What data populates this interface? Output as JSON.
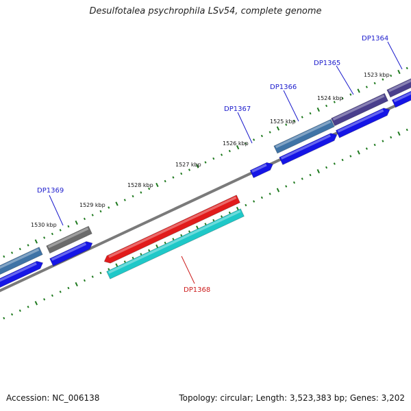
{
  "title": "Desulfotalea psychrophila LSv54, complete genome",
  "footer": {
    "accession": "Accession: NC_006138",
    "summary": "Topology: circular; Length: 3,523,383 bp; Genes: 3,202"
  },
  "colors": {
    "backbone": "#7a7a7a",
    "tick": "#1f7a1f",
    "label_blue": "#1a1acc",
    "label_red": "#cc1a1a",
    "cds_forward": "#1515e6",
    "gene_forward": "#3f73a6",
    "gene_forward_2": "#4a3f8c",
    "gene_gray": "#6b6b6b",
    "cds_reverse": "#1fc8c8",
    "gene_reverse": "#e11b1b"
  },
  "scale_labels": [
    "1523 kbp",
    "1524 kbp",
    "1525 kbp",
    "1526 kbp",
    "1527 kbp",
    "1528 kbp",
    "1529 kbp",
    "1530 kbp"
  ],
  "genes": [
    {
      "name": "DP1364",
      "color": "label_blue"
    },
    {
      "name": "DP1365",
      "color": "label_blue"
    },
    {
      "name": "DP1366",
      "color": "label_blue"
    },
    {
      "name": "DP1367",
      "color": "label_blue"
    },
    {
      "name": "DP1368",
      "color": "label_red"
    },
    {
      "name": "DP1369",
      "color": "label_blue"
    }
  ]
}
